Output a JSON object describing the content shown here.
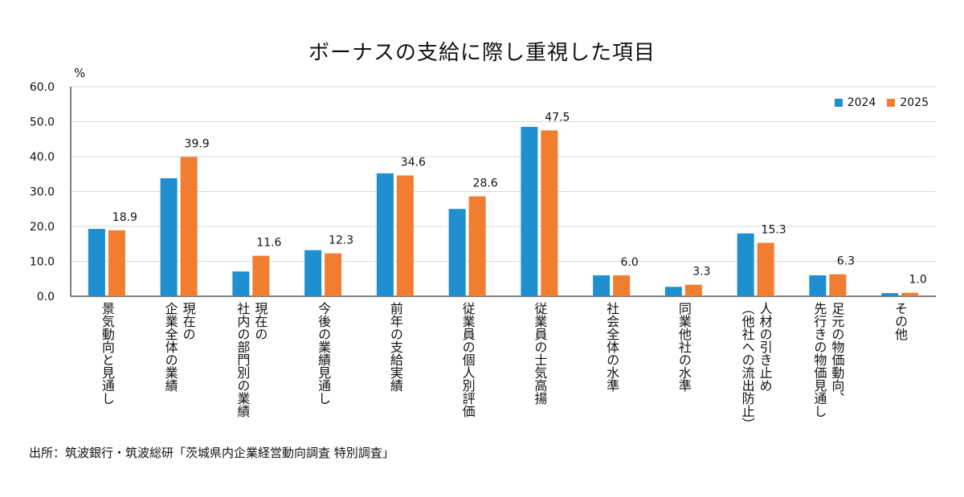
{
  "chart_data": {
    "type": "bar",
    "title": "ボーナスの支給に際し重視した項目",
    "ylabel": "%",
    "ylim": [
      0,
      60
    ],
    "yticks": [
      "0.0",
      "10.0",
      "20.0",
      "30.0",
      "40.0",
      "50.0",
      "60.0"
    ],
    "grid": true,
    "legend_position": "top-right",
    "categories": [
      "景気動向と見通し",
      "現在の\n企業全体の業績",
      "現在の\n社内の部門別の業績",
      "今後の業績見通し",
      "前年の支給実績",
      "従業員の個人別評価",
      "従業員の士気高揚",
      "社会全体の水準",
      "同業他社の水準",
      "人材の引き止め\n（他社への流出防止）",
      "足元の物価動向、\n先行きの物価見通し",
      "その他"
    ],
    "series": [
      {
        "name": "2024",
        "color": "#1f8fcf",
        "values": [
          19.3,
          33.8,
          7.1,
          13.2,
          35.2,
          25.0,
          48.5,
          6.0,
          2.7,
          18.0,
          6.0,
          0.9
        ]
      },
      {
        "name": "2025",
        "color": "#f07d30",
        "values": [
          18.9,
          39.9,
          11.6,
          12.3,
          34.6,
          28.6,
          47.5,
          6.0,
          3.3,
          15.3,
          6.3,
          1.0
        ],
        "labels": [
          "18.9",
          "39.9",
          "11.6",
          "12.3",
          "34.6",
          "28.6",
          "47.5",
          "6.0",
          "3.3",
          "15.3",
          "6.3",
          "1.0"
        ]
      }
    ]
  },
  "source": "出所：筑波銀行・筑波総研「茨城県内企業経営動向調査 特別調査」"
}
